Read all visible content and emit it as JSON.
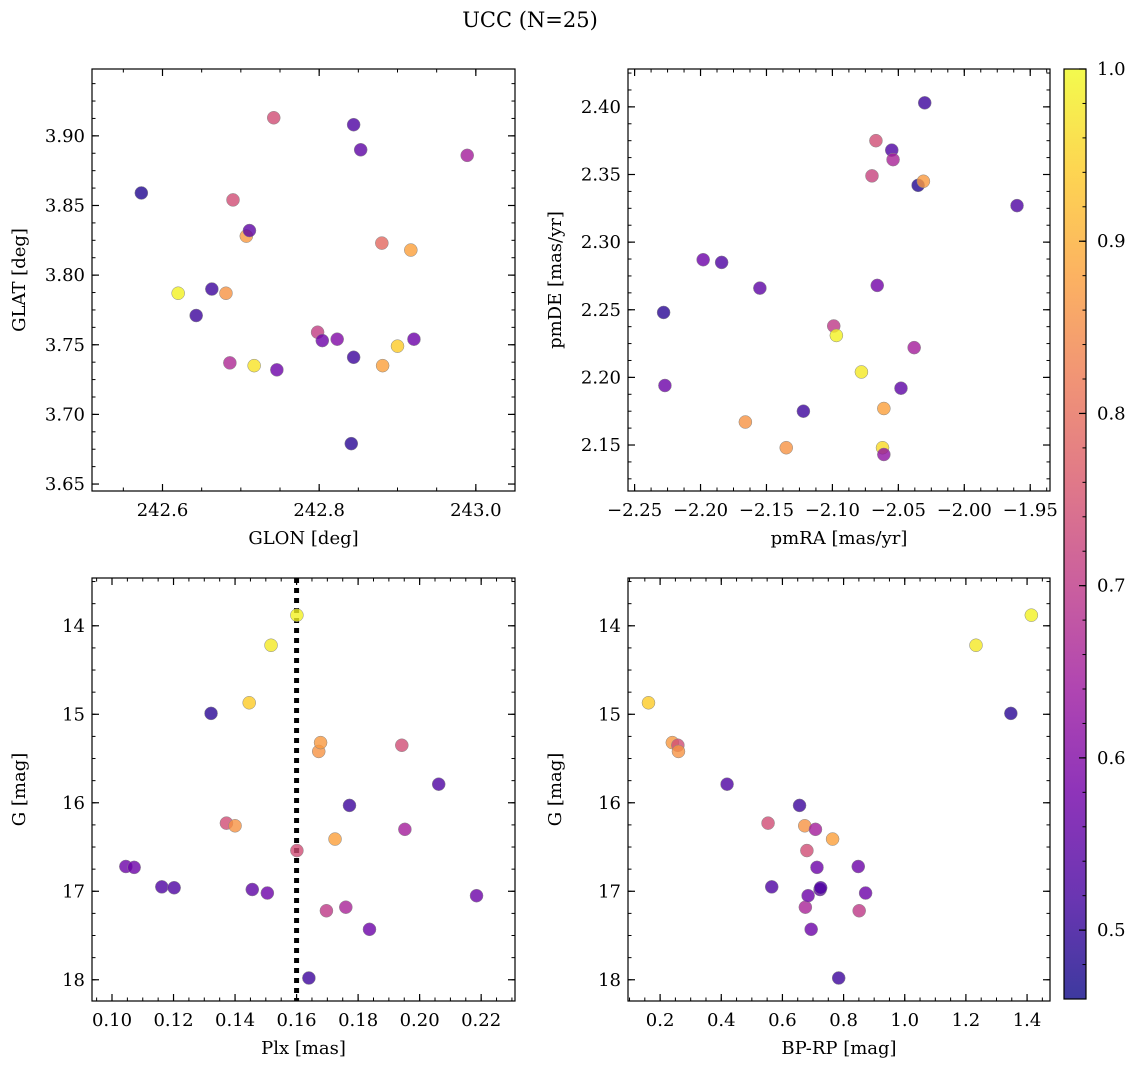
{
  "figure": {
    "title": "UCC (N=25)"
  },
  "colorbar": {
    "colormap": "plasma",
    "range": [
      0.46,
      1.0
    ],
    "ticks": [
      {
        "value": 0.5,
        "label": "0.5"
      },
      {
        "value": 0.6,
        "label": "0.6"
      },
      {
        "value": 0.7,
        "label": "0.7"
      },
      {
        "value": 0.8,
        "label": "0.8"
      },
      {
        "value": 0.9,
        "label": "0.9"
      },
      {
        "value": 1.0,
        "label": "1.0"
      }
    ],
    "stops": [
      "#0d0887",
      "#46039f",
      "#7201a8",
      "#9c179e",
      "#bd3786",
      "#d8576b",
      "#ed7953",
      "#fb9f3a",
      "#fdca26",
      "#f0f921"
    ]
  },
  "chart_data": [
    {
      "type": "scatter",
      "panel": "top-left",
      "xlabel": "GLON [deg]",
      "ylabel": "GLAT [deg]",
      "xlim": [
        242.51,
        243.05
      ],
      "ylim": [
        3.645,
        3.948
      ],
      "y_inverted": false,
      "xticks": [
        {
          "value": 242.6,
          "label": "242.6"
        },
        {
          "value": 242.8,
          "label": "242.8"
        },
        {
          "value": 243.0,
          "label": "243.0"
        }
      ],
      "yticks": [
        {
          "value": 3.65,
          "label": "3.65"
        },
        {
          "value": 3.7,
          "label": "3.70"
        },
        {
          "value": 3.75,
          "label": "3.75"
        },
        {
          "value": 3.8,
          "label": "3.80"
        },
        {
          "value": 3.85,
          "label": "3.85"
        },
        {
          "value": 3.9,
          "label": "3.90"
        }
      ],
      "points": [
        {
          "x": 242.573,
          "y": 3.859,
          "c": 0.48
        },
        {
          "x": 242.62,
          "y": 3.787,
          "c": 0.99
        },
        {
          "x": 242.643,
          "y": 3.771,
          "c": 0.51
        },
        {
          "x": 242.663,
          "y": 3.79,
          "c": 0.51
        },
        {
          "x": 242.681,
          "y": 3.787,
          "c": 0.86
        },
        {
          "x": 242.686,
          "y": 3.737,
          "c": 0.67
        },
        {
          "x": 242.69,
          "y": 3.854,
          "c": 0.74
        },
        {
          "x": 242.707,
          "y": 3.828,
          "c": 0.87
        },
        {
          "x": 242.711,
          "y": 3.832,
          "c": 0.55
        },
        {
          "x": 242.717,
          "y": 3.735,
          "c": 0.97
        },
        {
          "x": 242.742,
          "y": 3.913,
          "c": 0.74
        },
        {
          "x": 242.746,
          "y": 3.732,
          "c": 0.57
        },
        {
          "x": 242.798,
          "y": 3.759,
          "c": 0.71
        },
        {
          "x": 242.804,
          "y": 3.753,
          "c": 0.57
        },
        {
          "x": 242.823,
          "y": 3.754,
          "c": 0.6
        },
        {
          "x": 242.841,
          "y": 3.679,
          "c": 0.49
        },
        {
          "x": 242.844,
          "y": 3.908,
          "c": 0.53
        },
        {
          "x": 242.844,
          "y": 3.741,
          "c": 0.51
        },
        {
          "x": 242.853,
          "y": 3.89,
          "c": 0.55
        },
        {
          "x": 242.88,
          "y": 3.823,
          "c": 0.79
        },
        {
          "x": 242.881,
          "y": 3.735,
          "c": 0.88
        },
        {
          "x": 242.9,
          "y": 3.749,
          "c": 0.94
        },
        {
          "x": 242.917,
          "y": 3.818,
          "c": 0.88
        },
        {
          "x": 242.921,
          "y": 3.754,
          "c": 0.57
        },
        {
          "x": 242.989,
          "y": 3.886,
          "c": 0.65
        }
      ]
    },
    {
      "type": "scatter",
      "panel": "top-right",
      "xlabel": "pmRA [mas/yr]",
      "ylabel": "pmDE [mas/yr]",
      "xlim": [
        -2.255,
        -1.935
      ],
      "ylim": [
        2.116,
        2.428
      ],
      "y_inverted": false,
      "xticks": [
        {
          "value": -2.25,
          "label": "−2.25"
        },
        {
          "value": -2.2,
          "label": "−2.20"
        },
        {
          "value": -2.15,
          "label": "−2.15"
        },
        {
          "value": -2.1,
          "label": "−2.10"
        },
        {
          "value": -2.05,
          "label": "−2.05"
        },
        {
          "value": -2.0,
          "label": "−2.00"
        },
        {
          "value": -1.95,
          "label": "−1.95"
        }
      ],
      "yticks": [
        {
          "value": 2.15,
          "label": "2.15"
        },
        {
          "value": 2.2,
          "label": "2.20"
        },
        {
          "value": 2.25,
          "label": "2.25"
        },
        {
          "value": 2.3,
          "label": "2.30"
        },
        {
          "value": 2.35,
          "label": "2.35"
        },
        {
          "value": 2.4,
          "label": "2.40"
        }
      ],
      "points": [
        {
          "x": -2.228,
          "y": 2.248,
          "c": 0.49
        },
        {
          "x": -2.227,
          "y": 2.194,
          "c": 0.57
        },
        {
          "x": -2.198,
          "y": 2.287,
          "c": 0.57
        },
        {
          "x": -2.184,
          "y": 2.285,
          "c": 0.53
        },
        {
          "x": -2.166,
          "y": 2.167,
          "c": 0.86
        },
        {
          "x": -2.155,
          "y": 2.266,
          "c": 0.55
        },
        {
          "x": -2.135,
          "y": 2.148,
          "c": 0.86
        },
        {
          "x": -2.122,
          "y": 2.175,
          "c": 0.51
        },
        {
          "x": -2.099,
          "y": 2.238,
          "c": 0.7
        },
        {
          "x": -2.097,
          "y": 2.231,
          "c": 0.99
        },
        {
          "x": -2.078,
          "y": 2.204,
          "c": 0.98
        },
        {
          "x": -2.07,
          "y": 2.349,
          "c": 0.72
        },
        {
          "x": -2.067,
          "y": 2.375,
          "c": 0.74
        },
        {
          "x": -2.066,
          "y": 2.268,
          "c": 0.58
        },
        {
          "x": -2.062,
          "y": 2.148,
          "c": 0.96
        },
        {
          "x": -2.061,
          "y": 2.143,
          "c": 0.62
        },
        {
          "x": -2.061,
          "y": 2.177,
          "c": 0.88
        },
        {
          "x": -2.055,
          "y": 2.368,
          "c": 0.53
        },
        {
          "x": -2.054,
          "y": 2.361,
          "c": 0.66
        },
        {
          "x": -2.048,
          "y": 2.192,
          "c": 0.55
        },
        {
          "x": -2.038,
          "y": 2.222,
          "c": 0.65
        },
        {
          "x": -2.035,
          "y": 2.342,
          "c": 0.48
        },
        {
          "x": -2.031,
          "y": 2.345,
          "c": 0.87
        },
        {
          "x": -2.03,
          "y": 2.403,
          "c": 0.51
        },
        {
          "x": -1.96,
          "y": 2.327,
          "c": 0.53
        }
      ]
    },
    {
      "type": "scatter",
      "panel": "bottom-left",
      "xlabel": "Plx [mas]",
      "ylabel": "G [mag]",
      "xlim": [
        0.0935,
        0.231
      ],
      "ylim": [
        18.24,
        13.46
      ],
      "y_inverted": true,
      "xticks": [
        {
          "value": 0.1,
          "label": "0.10"
        },
        {
          "value": 0.12,
          "label": "0.12"
        },
        {
          "value": 0.14,
          "label": "0.14"
        },
        {
          "value": 0.16,
          "label": "0.16"
        },
        {
          "value": 0.18,
          "label": "0.18"
        },
        {
          "value": 0.2,
          "label": "0.20"
        },
        {
          "value": 0.22,
          "label": "0.22"
        }
      ],
      "yticks": [
        {
          "value": 14,
          "label": "14"
        },
        {
          "value": 15,
          "label": "15"
        },
        {
          "value": 16,
          "label": "16"
        },
        {
          "value": 17,
          "label": "17"
        },
        {
          "value": 18,
          "label": "18"
        }
      ],
      "vline": {
        "x": 0.16,
        "style": "dotted"
      },
      "points": [
        {
          "x": 0.1045,
          "y": 16.72,
          "c": 0.57
        },
        {
          "x": 0.1072,
          "y": 16.73,
          "c": 0.57
        },
        {
          "x": 0.1162,
          "y": 16.95,
          "c": 0.53
        },
        {
          "x": 0.1202,
          "y": 16.96,
          "c": 0.53
        },
        {
          "x": 0.1322,
          "y": 14.99,
          "c": 0.49
        },
        {
          "x": 0.1372,
          "y": 16.23,
          "c": 0.74
        },
        {
          "x": 0.14,
          "y": 16.26,
          "c": 0.86
        },
        {
          "x": 0.1446,
          "y": 14.87,
          "c": 0.94
        },
        {
          "x": 0.1456,
          "y": 16.98,
          "c": 0.55
        },
        {
          "x": 0.1505,
          "y": 17.02,
          "c": 0.57
        },
        {
          "x": 0.1517,
          "y": 14.22,
          "c": 0.98
        },
        {
          "x": 0.1601,
          "y": 13.88,
          "c": 0.99
        },
        {
          "x": 0.1601,
          "y": 16.54,
          "c": 0.74
        },
        {
          "x": 0.164,
          "y": 17.98,
          "c": 0.51
        },
        {
          "x": 0.1672,
          "y": 15.42,
          "c": 0.86
        },
        {
          "x": 0.1678,
          "y": 15.32,
          "c": 0.87
        },
        {
          "x": 0.1697,
          "y": 17.22,
          "c": 0.7
        },
        {
          "x": 0.1725,
          "y": 16.41,
          "c": 0.88
        },
        {
          "x": 0.176,
          "y": 17.18,
          "c": 0.66
        },
        {
          "x": 0.1772,
          "y": 16.03,
          "c": 0.51
        },
        {
          "x": 0.1837,
          "y": 17.43,
          "c": 0.57
        },
        {
          "x": 0.1942,
          "y": 15.35,
          "c": 0.74
        },
        {
          "x": 0.1952,
          "y": 16.3,
          "c": 0.65
        },
        {
          "x": 0.2062,
          "y": 15.79,
          "c": 0.53
        },
        {
          "x": 0.2185,
          "y": 17.05,
          "c": 0.57
        }
      ]
    },
    {
      "type": "scatter",
      "panel": "bottom-right",
      "xlabel": "BP-RP [mag]",
      "ylabel": "G [mag]",
      "xlim": [
        0.095,
        1.475
      ],
      "ylim": [
        18.24,
        13.46
      ],
      "y_inverted": true,
      "xticks": [
        {
          "value": 0.2,
          "label": "0.2"
        },
        {
          "value": 0.4,
          "label": "0.4"
        },
        {
          "value": 0.6,
          "label": "0.6"
        },
        {
          "value": 0.8,
          "label": "0.8"
        },
        {
          "value": 1.0,
          "label": "1.0"
        },
        {
          "value": 1.2,
          "label": "1.2"
        },
        {
          "value": 1.4,
          "label": "1.4"
        }
      ],
      "yticks": [
        {
          "value": 14,
          "label": "14"
        },
        {
          "value": 15,
          "label": "15"
        },
        {
          "value": 16,
          "label": "16"
        },
        {
          "value": 17,
          "label": "17"
        },
        {
          "value": 18,
          "label": "18"
        }
      ],
      "points": [
        {
          "x": 0.162,
          "y": 14.87,
          "c": 0.94
        },
        {
          "x": 0.24,
          "y": 15.32,
          "c": 0.87
        },
        {
          "x": 0.258,
          "y": 15.35,
          "c": 0.74
        },
        {
          "x": 0.26,
          "y": 15.42,
          "c": 0.86
        },
        {
          "x": 0.419,
          "y": 15.79,
          "c": 0.53
        },
        {
          "x": 0.553,
          "y": 16.23,
          "c": 0.74
        },
        {
          "x": 0.565,
          "y": 16.95,
          "c": 0.53
        },
        {
          "x": 0.656,
          "y": 16.03,
          "c": 0.51
        },
        {
          "x": 0.673,
          "y": 16.26,
          "c": 0.86
        },
        {
          "x": 0.675,
          "y": 17.18,
          "c": 0.66
        },
        {
          "x": 0.68,
          "y": 16.54,
          "c": 0.74
        },
        {
          "x": 0.684,
          "y": 17.05,
          "c": 0.57
        },
        {
          "x": 0.694,
          "y": 17.43,
          "c": 0.57
        },
        {
          "x": 0.708,
          "y": 16.3,
          "c": 0.65
        },
        {
          "x": 0.713,
          "y": 16.73,
          "c": 0.57
        },
        {
          "x": 0.723,
          "y": 16.98,
          "c": 0.55
        },
        {
          "x": 0.725,
          "y": 16.96,
          "c": 0.53
        },
        {
          "x": 0.764,
          "y": 16.41,
          "c": 0.88
        },
        {
          "x": 0.784,
          "y": 17.98,
          "c": 0.51
        },
        {
          "x": 0.848,
          "y": 16.72,
          "c": 0.57
        },
        {
          "x": 0.851,
          "y": 17.22,
          "c": 0.7
        },
        {
          "x": 0.872,
          "y": 17.02,
          "c": 0.57
        },
        {
          "x": 1.233,
          "y": 14.22,
          "c": 0.98
        },
        {
          "x": 1.347,
          "y": 14.99,
          "c": 0.49
        },
        {
          "x": 1.414,
          "y": 13.88,
          "c": 0.99
        }
      ]
    }
  ]
}
